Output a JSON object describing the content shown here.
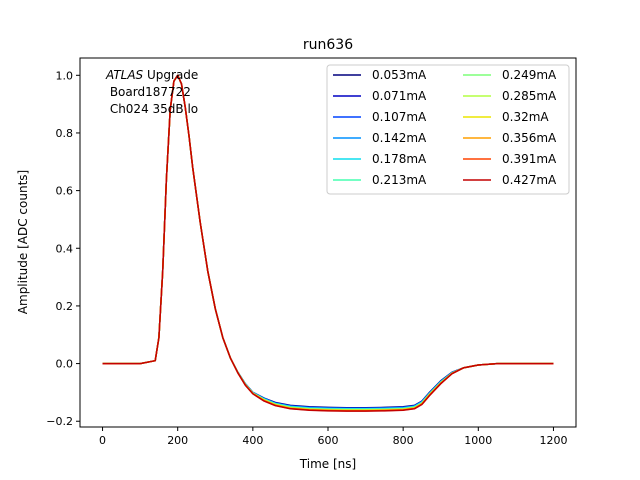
{
  "chart_data": {
    "type": "line",
    "title": "run636",
    "xlabel": "Time [ns]",
    "ylabel": "Amplitude [ADC counts]",
    "xlim": [
      -60,
      1260
    ],
    "ylim": [
      -0.22,
      1.06
    ],
    "xticks": [
      0,
      200,
      400,
      600,
      800,
      1000,
      1200
    ],
    "yticks": [
      -0.2,
      0.0,
      0.2,
      0.4,
      0.6,
      0.8,
      1.0
    ],
    "xtick_labels": [
      "0",
      "200",
      "400",
      "600",
      "800",
      "1000",
      "1200"
    ],
    "ytick_labels": [
      "−0.2",
      "0.0",
      "0.2",
      "0.4",
      "0.6",
      "0.8",
      "1.0"
    ],
    "grid": false,
    "legend_position": "top-right",
    "legend_columns": 2,
    "annotation": {
      "atlas": "ATLAS",
      "upgrade": " Upgrade",
      "line2": " Board187722",
      "line3": " Ch024 35dB lo"
    },
    "x": [
      0,
      50,
      100,
      140,
      150,
      160,
      170,
      180,
      190,
      200,
      210,
      220,
      230,
      240,
      260,
      280,
      300,
      320,
      340,
      360,
      380,
      400,
      430,
      460,
      500,
      550,
      600,
      650,
      700,
      750,
      800,
      830,
      850,
      870,
      900,
      930,
      960,
      1000,
      1050,
      1100,
      1150,
      1200
    ],
    "series": [
      {
        "name": "0.053mA",
        "color": "#00007f",
        "values": [
          0.0,
          0.0,
          0.0,
          0.01,
          0.09,
          0.32,
          0.64,
          0.88,
          0.98,
          1.0,
          0.97,
          0.89,
          0.79,
          0.68,
          0.49,
          0.32,
          0.19,
          0.09,
          0.02,
          -0.03,
          -0.07,
          -0.1,
          -0.12,
          -0.135,
          -0.145,
          -0.15,
          -0.152,
          -0.153,
          -0.153,
          -0.152,
          -0.15,
          -0.145,
          -0.13,
          -0.1,
          -0.06,
          -0.03,
          -0.015,
          -0.005,
          0.0,
          0.0,
          0.0,
          0.0
        ]
      },
      {
        "name": "0.071mA",
        "color": "#0000c4",
        "values": [
          0.0,
          0.0,
          0.0,
          0.01,
          0.09,
          0.32,
          0.64,
          0.88,
          0.98,
          1.0,
          0.97,
          0.89,
          0.79,
          0.68,
          0.49,
          0.32,
          0.19,
          0.09,
          0.02,
          -0.03,
          -0.07,
          -0.1,
          -0.12,
          -0.136,
          -0.146,
          -0.151,
          -0.153,
          -0.154,
          -0.154,
          -0.153,
          -0.151,
          -0.146,
          -0.131,
          -0.101,
          -0.061,
          -0.031,
          -0.015,
          -0.005,
          0.0,
          0.0,
          0.0,
          0.0
        ]
      },
      {
        "name": "0.107mA",
        "color": "#0044ff",
        "values": [
          0.0,
          0.0,
          0.0,
          0.01,
          0.09,
          0.32,
          0.64,
          0.88,
          0.98,
          1.0,
          0.97,
          0.89,
          0.79,
          0.68,
          0.49,
          0.32,
          0.19,
          0.09,
          0.02,
          -0.03,
          -0.07,
          -0.1,
          -0.121,
          -0.137,
          -0.147,
          -0.152,
          -0.154,
          -0.155,
          -0.155,
          -0.154,
          -0.152,
          -0.147,
          -0.132,
          -0.102,
          -0.062,
          -0.031,
          -0.015,
          -0.005,
          0.0,
          0.0,
          0.0,
          0.0
        ]
      },
      {
        "name": "0.142mA",
        "color": "#0090ff",
        "values": [
          0.0,
          0.0,
          0.0,
          0.01,
          0.09,
          0.32,
          0.64,
          0.88,
          0.98,
          1.0,
          0.97,
          0.89,
          0.79,
          0.68,
          0.49,
          0.32,
          0.19,
          0.09,
          0.02,
          -0.03,
          -0.071,
          -0.101,
          -0.122,
          -0.138,
          -0.148,
          -0.153,
          -0.155,
          -0.156,
          -0.156,
          -0.155,
          -0.153,
          -0.148,
          -0.133,
          -0.103,
          -0.063,
          -0.032,
          -0.015,
          -0.005,
          0.0,
          0.0,
          0.0,
          0.0
        ]
      },
      {
        "name": "0.178mA",
        "color": "#0fdeee",
        "values": [
          0.0,
          0.0,
          0.0,
          0.01,
          0.09,
          0.32,
          0.64,
          0.88,
          0.98,
          1.0,
          0.97,
          0.89,
          0.79,
          0.68,
          0.49,
          0.32,
          0.19,
          0.09,
          0.02,
          -0.03,
          -0.071,
          -0.101,
          -0.123,
          -0.139,
          -0.149,
          -0.154,
          -0.156,
          -0.157,
          -0.157,
          -0.156,
          -0.154,
          -0.149,
          -0.134,
          -0.104,
          -0.064,
          -0.032,
          -0.015,
          -0.005,
          0.0,
          0.0,
          0.0,
          0.0
        ]
      },
      {
        "name": "0.213mA",
        "color": "#46ffb0",
        "values": [
          0.0,
          0.0,
          0.0,
          0.01,
          0.09,
          0.32,
          0.64,
          0.88,
          0.98,
          1.0,
          0.97,
          0.89,
          0.79,
          0.68,
          0.49,
          0.32,
          0.19,
          0.09,
          0.02,
          -0.031,
          -0.072,
          -0.102,
          -0.124,
          -0.14,
          -0.151,
          -0.156,
          -0.158,
          -0.159,
          -0.159,
          -0.158,
          -0.156,
          -0.151,
          -0.136,
          -0.105,
          -0.065,
          -0.033,
          -0.015,
          -0.005,
          0.0,
          0.0,
          0.0,
          0.0
        ]
      },
      {
        "name": "0.249mA",
        "color": "#7dff79",
        "values": [
          0.0,
          0.0,
          0.0,
          0.01,
          0.09,
          0.32,
          0.64,
          0.88,
          0.98,
          1.0,
          0.97,
          0.89,
          0.79,
          0.68,
          0.49,
          0.32,
          0.19,
          0.09,
          0.02,
          -0.031,
          -0.072,
          -0.102,
          -0.125,
          -0.141,
          -0.152,
          -0.157,
          -0.159,
          -0.16,
          -0.16,
          -0.159,
          -0.157,
          -0.152,
          -0.137,
          -0.106,
          -0.066,
          -0.033,
          -0.015,
          -0.005,
          0.0,
          0.0,
          0.0,
          0.0
        ]
      },
      {
        "name": "0.285mA",
        "color": "#b4ff42",
        "values": [
          0.0,
          0.0,
          0.0,
          0.01,
          0.09,
          0.32,
          0.64,
          0.88,
          0.98,
          1.0,
          0.97,
          0.89,
          0.79,
          0.68,
          0.49,
          0.32,
          0.19,
          0.09,
          0.02,
          -0.031,
          -0.073,
          -0.103,
          -0.126,
          -0.142,
          -0.153,
          -0.158,
          -0.16,
          -0.161,
          -0.161,
          -0.16,
          -0.158,
          -0.153,
          -0.138,
          -0.107,
          -0.067,
          -0.034,
          -0.015,
          -0.005,
          0.0,
          0.0,
          0.0,
          0.0
        ]
      },
      {
        "name": "0.32mA",
        "color": "#ebe500",
        "values": [
          0.0,
          0.0,
          0.0,
          0.01,
          0.09,
          0.32,
          0.64,
          0.88,
          0.98,
          1.0,
          0.97,
          0.89,
          0.79,
          0.68,
          0.49,
          0.32,
          0.19,
          0.09,
          0.02,
          -0.031,
          -0.073,
          -0.103,
          -0.127,
          -0.143,
          -0.154,
          -0.159,
          -0.161,
          -0.162,
          -0.162,
          -0.161,
          -0.159,
          -0.154,
          -0.139,
          -0.108,
          -0.068,
          -0.034,
          -0.015,
          -0.005,
          0.0,
          0.0,
          0.0,
          0.0
        ]
      },
      {
        "name": "0.356mA",
        "color": "#ff9f00",
        "values": [
          0.0,
          0.0,
          0.0,
          0.01,
          0.09,
          0.32,
          0.64,
          0.88,
          0.98,
          1.0,
          0.97,
          0.89,
          0.79,
          0.68,
          0.49,
          0.32,
          0.19,
          0.09,
          0.02,
          -0.032,
          -0.074,
          -0.104,
          -0.128,
          -0.144,
          -0.155,
          -0.16,
          -0.162,
          -0.163,
          -0.163,
          -0.162,
          -0.16,
          -0.155,
          -0.14,
          -0.109,
          -0.068,
          -0.034,
          -0.015,
          -0.005,
          0.0,
          0.0,
          0.0,
          0.0
        ]
      },
      {
        "name": "0.391mA",
        "color": "#ff4400",
        "values": [
          0.0,
          0.0,
          0.0,
          0.01,
          0.09,
          0.32,
          0.64,
          0.88,
          0.98,
          1.0,
          0.97,
          0.89,
          0.79,
          0.68,
          0.49,
          0.32,
          0.19,
          0.09,
          0.02,
          -0.032,
          -0.074,
          -0.104,
          -0.129,
          -0.145,
          -0.156,
          -0.161,
          -0.163,
          -0.164,
          -0.164,
          -0.163,
          -0.161,
          -0.156,
          -0.141,
          -0.11,
          -0.069,
          -0.035,
          -0.015,
          -0.005,
          0.0,
          0.0,
          0.0,
          0.0
        ]
      },
      {
        "name": "0.427mA",
        "color": "#c40000",
        "values": [
          0.0,
          0.0,
          0.0,
          0.01,
          0.09,
          0.32,
          0.64,
          0.88,
          0.98,
          1.0,
          0.97,
          0.89,
          0.79,
          0.68,
          0.49,
          0.32,
          0.19,
          0.09,
          0.02,
          -0.032,
          -0.075,
          -0.105,
          -0.13,
          -0.146,
          -0.157,
          -0.162,
          -0.164,
          -0.165,
          -0.165,
          -0.164,
          -0.162,
          -0.157,
          -0.142,
          -0.111,
          -0.07,
          -0.035,
          -0.015,
          -0.005,
          0.0,
          0.0,
          0.0,
          0.0
        ]
      }
    ]
  }
}
